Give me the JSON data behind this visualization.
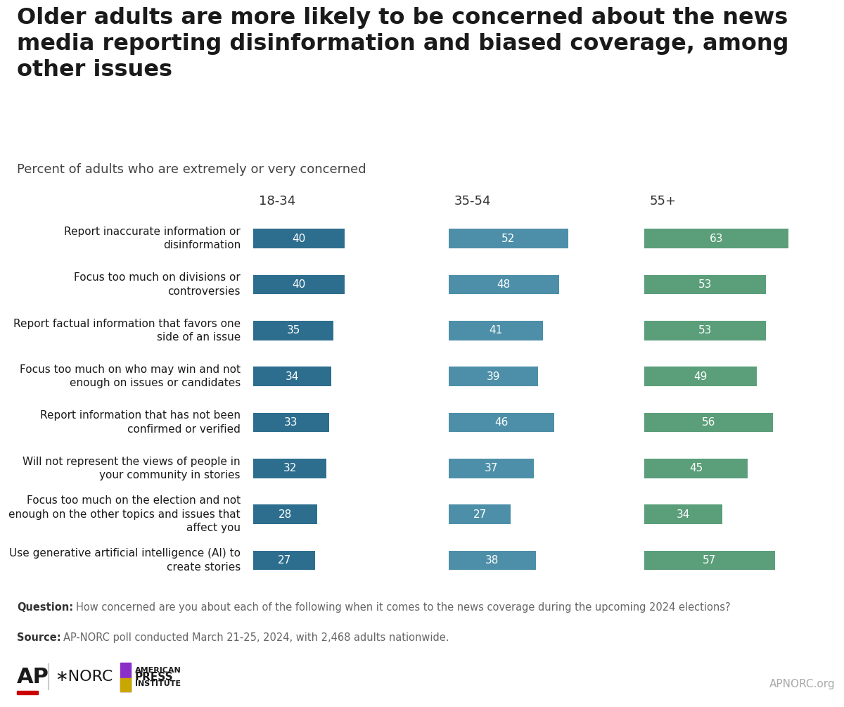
{
  "title": "Older adults are more likely to be concerned about the news\nmedia reporting disinformation and biased coverage, among\nother issues",
  "subtitle": "Percent of adults who are extremely or very concerned",
  "categories": [
    "Report inaccurate information or\ndisinformation",
    "Focus too much on divisions or\ncontroversies",
    "Report factual information that favors one\nside of an issue",
    "Focus too much on who may win and not\nenough on issues or candidates",
    "Report information that has not been\nconfirmed or verified",
    "Will not represent the views of people in\nyour community in stories",
    "Focus too much on the election and not\nenough on the other topics and issues that\naffect you",
    "Use generative artificial intelligence (AI) to\ncreate stories"
  ],
  "age_groups": [
    "18-34",
    "35-54",
    "55+"
  ],
  "values": [
    [
      40,
      52,
      63
    ],
    [
      40,
      48,
      53
    ],
    [
      35,
      41,
      53
    ],
    [
      34,
      39,
      49
    ],
    [
      33,
      46,
      56
    ],
    [
      32,
      37,
      45
    ],
    [
      28,
      27,
      34
    ],
    [
      27,
      38,
      57
    ]
  ],
  "colors": [
    "#2d6e8e",
    "#4d8fa8",
    "#5a9e7a"
  ],
  "question_bold": "Question:",
  "question_text": " How concerned are you about each of the following when it comes to the news coverage during the upcoming 2024 elections?",
  "source_bold": "Source:",
  "source_text": " AP-NORC poll conducted March 21-25, 2024, with 2,468 adults nationwide.",
  "background_color": "#ffffff",
  "text_color": "#1a1a1a",
  "footer_color": "#666666",
  "apnorc_text": "APNORC.org",
  "title_fontsize": 23,
  "subtitle_fontsize": 13,
  "label_fontsize": 11,
  "bar_value_fontsize": 11,
  "header_fontsize": 13,
  "footer_fontsize": 10.5
}
